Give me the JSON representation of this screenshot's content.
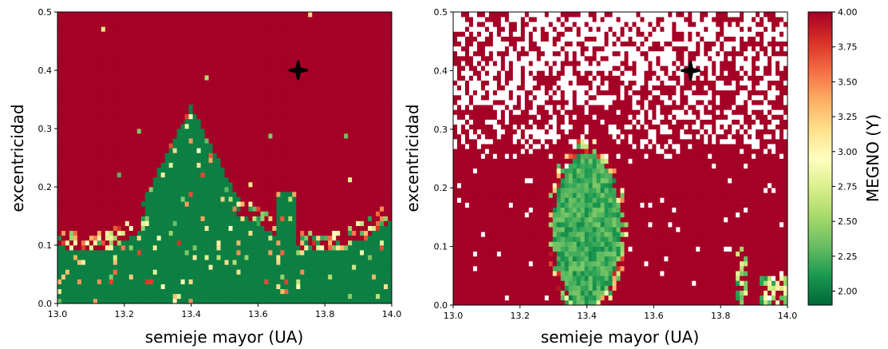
{
  "colors": {
    "chaotic": "#a50026",
    "regular": "#137a3e",
    "marker": "#000000",
    "colormap_stops": [
      "#006837",
      "#1a9850",
      "#66bd63",
      "#a6d96a",
      "#d9ef8b",
      "#ffffbf",
      "#fee08b",
      "#fdae61",
      "#f46d43",
      "#d73027",
      "#a50026"
    ]
  },
  "chart_data": [
    {
      "type": "heatmap",
      "panel": "left",
      "xlabel": "semieje mayor (UA)",
      "ylabel": "excentricidad",
      "xlim": [
        13.0,
        14.0
      ],
      "ylim": [
        0.0,
        0.5
      ],
      "x_ticks": [
        "13.0",
        "13.2",
        "13.4",
        "13.6",
        "13.8",
        "14.0"
      ],
      "y_ticks": [
        "0.0",
        "0.1",
        "0.2",
        "0.3",
        "0.4",
        "0.5"
      ],
      "color_variable": "MEGNO (Y)",
      "marker": {
        "a": 13.72,
        "e": 0.4,
        "shape": "cross"
      },
      "regions": [
        {
          "description": "chaotic background",
          "megno": 4.0
        },
        {
          "description": "stable diamond region",
          "a_range": [
            13.25,
            13.55
          ],
          "e_range": [
            0.0,
            0.34
          ],
          "megno": 2.0
        },
        {
          "description": "stable low-eccentricity band",
          "a_range": [
            13.0,
            14.0
          ],
          "e_range": [
            0.0,
            0.15
          ],
          "megno": 2.0
        }
      ]
    },
    {
      "type": "heatmap",
      "panel": "right",
      "xlabel": "semieje mayor (UA)",
      "ylabel": "excentricidad",
      "xlim": [
        13.0,
        14.0
      ],
      "ylim": [
        0.0,
        0.5
      ],
      "x_ticks": [
        "13.0",
        "13.2",
        "13.4",
        "13.6",
        "13.8",
        "14.0"
      ],
      "y_ticks": [
        "0.0",
        "0.1",
        "0.2",
        "0.3",
        "0.4",
        "0.5"
      ],
      "color_variable": "MEGNO (Y)",
      "marker": {
        "a": 13.71,
        "e": 0.4,
        "shape": "cross"
      },
      "regions": [
        {
          "description": "chaotic background",
          "megno": 4.0
        },
        {
          "description": "escaped orbits (blank)",
          "e_range": [
            0.26,
            0.5
          ]
        },
        {
          "description": "stable resonance island",
          "a_range": [
            13.3,
            13.5
          ],
          "e_range": [
            0.0,
            0.26
          ],
          "megno": 2.1
        },
        {
          "description": "stable patches near 13.9-14.0",
          "a_range": [
            13.85,
            14.0
          ],
          "e_range": [
            0.0,
            0.05
          ],
          "megno": 2.2
        }
      ],
      "colorbar": {
        "label": "MEGNO (Y)",
        "range": [
          1.9,
          4.0
        ],
        "ticks": [
          "4.00",
          "3.75",
          "3.50",
          "3.25",
          "3.00",
          "2.75",
          "2.50",
          "2.25",
          "2.00"
        ]
      }
    }
  ]
}
